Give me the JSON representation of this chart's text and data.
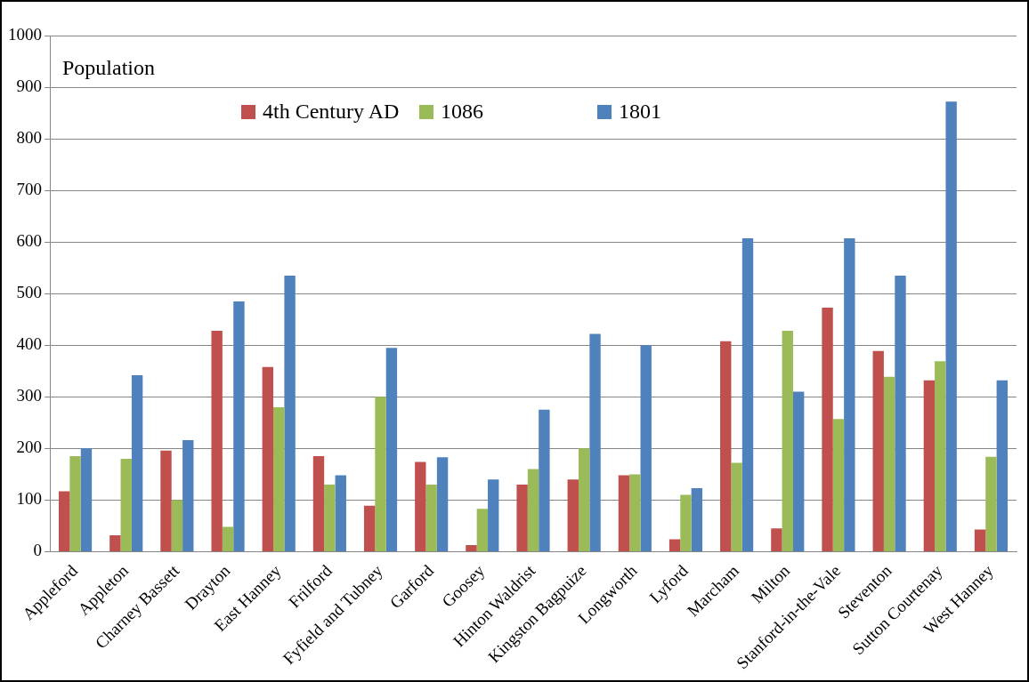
{
  "chart_data": {
    "type": "bar",
    "ylabel": "Population",
    "categories": [
      "Appleford",
      "Appleton",
      "Charney Bassett",
      "Drayton",
      "East Hanney",
      "Frilford",
      "Fyfield and Tubney",
      "Garford",
      "Goosey",
      "Hinton Waldrist",
      "Kingston Bagpuize",
      "Longworth",
      "Lyford",
      "Marcham",
      "Milton",
      "Stanford-in-the-Vale",
      "Steventon",
      "Sutton Courtenay",
      "West Hanney"
    ],
    "series": [
      {
        "name": "4th Century AD",
        "color": "#c0504d",
        "values": [
          117,
          32,
          196,
          428,
          358,
          185,
          89,
          174,
          13,
          130,
          140,
          148,
          24,
          408,
          45,
          473,
          389,
          332,
          43
        ]
      },
      {
        "name": "1086",
        "color": "#9bbb59",
        "values": [
          185,
          180,
          100,
          48,
          280,
          130,
          300,
          130,
          83,
          160,
          200,
          150,
          110,
          172,
          428,
          257,
          339,
          369,
          184
        ]
      },
      {
        "name": "1801",
        "color": "#4f81bd",
        "values": [
          200,
          342,
          216,
          485,
          535,
          148,
          395,
          183,
          140,
          275,
          422,
          400,
          123,
          607,
          310,
          607,
          535,
          872,
          332
        ]
      }
    ],
    "ylim": [
      0,
      1000
    ],
    "yticks": [
      0,
      100,
      200,
      300,
      400,
      500,
      600,
      700,
      800,
      900,
      1000
    ],
    "grid": "y",
    "legend": "top"
  }
}
